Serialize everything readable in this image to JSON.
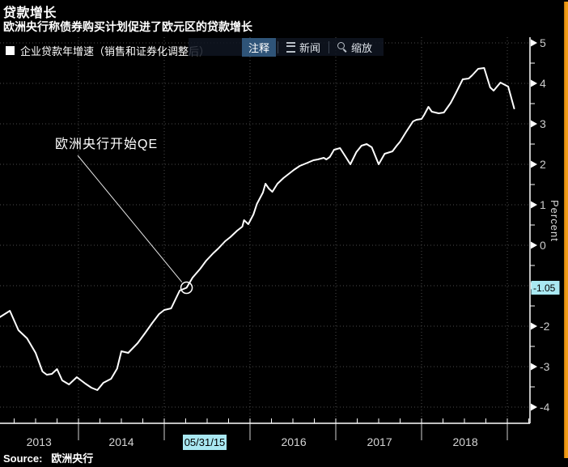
{
  "header": {
    "title": "贷款增长",
    "subtitle": "欧洲央行称债券购买计划促进了欧元区的贷款增长"
  },
  "legend": {
    "marker_color": "#ffffff",
    "label": "企业贷款年增速（销售和证券化调整后）"
  },
  "toolbar": {
    "items": [
      {
        "label": "注释",
        "selected": true,
        "icon": null
      },
      {
        "label": "新闻",
        "selected": false,
        "icon": "list-icon"
      },
      {
        "label": "缩放",
        "selected": false,
        "icon": "magnifier-icon"
      }
    ]
  },
  "annotation": {
    "text": "欧洲央行开始QE"
  },
  "selected_point": {
    "date_label": "05/31/15",
    "value_label": "-1.05",
    "x_year": 2015.26,
    "value": -1.05
  },
  "y_axis": {
    "title": "Percent",
    "major_ticks": [
      5,
      4,
      3,
      2,
      1,
      0,
      -1,
      -2,
      -3,
      -4
    ]
  },
  "x_axis": {
    "year_labels": [
      {
        "text": "2013",
        "center_year": 2013.54
      },
      {
        "text": "2014",
        "center_year": 2014.5
      },
      {
        "text": "2016",
        "center_year": 2016.51
      },
      {
        "text": "2017",
        "center_year": 2017.51
      },
      {
        "text": "2018",
        "center_year": 2018.51
      }
    ],
    "year_separators": [
      2014,
      2015,
      2016,
      2017,
      2018,
      2019
    ]
  },
  "source": {
    "prefix": "Source:",
    "name": "欧洲央行"
  },
  "colors": {
    "background": "#000000",
    "line": "#ffffff",
    "grid": "#4d4d4d",
    "axis": "#ffffff",
    "tick_label": "#cccccc",
    "highlight_cyan": "#a9e8f2",
    "selected_button_blue": "#2f5478",
    "orange_edge": "#f09c16"
  },
  "chart_data": {
    "type": "line",
    "title": "贷款增长",
    "subtitle": "欧洲央行称债券购买计划促进了欧元区的贷款增长",
    "series_name": "企业贷款年增速（销售和证券化调整后）",
    "xlabel": "",
    "ylabel": "Percent",
    "xlim": [
      2013.085,
      2019.264
    ],
    "ylim": [
      -4.4,
      5.14
    ],
    "grid": true,
    "annotation": {
      "text": "欧洲央行开始QE",
      "target_year": 2015.26,
      "target_value": -1.05
    },
    "series": [
      {
        "name": "企业贷款年增速（销售和证券化调整后）",
        "points": [
          [
            2013.08,
            -1.78
          ],
          [
            2013.2,
            -1.62
          ],
          [
            2013.3,
            -2.1
          ],
          [
            2013.4,
            -2.3
          ],
          [
            2013.5,
            -2.66
          ],
          [
            2013.58,
            -3.12
          ],
          [
            2013.63,
            -3.2
          ],
          [
            2013.69,
            -3.18
          ],
          [
            2013.75,
            -3.06
          ],
          [
            2013.81,
            -3.34
          ],
          [
            2013.89,
            -3.44
          ],
          [
            2013.98,
            -3.26
          ],
          [
            2014.08,
            -3.42
          ],
          [
            2014.15,
            -3.52
          ],
          [
            2014.22,
            -3.58
          ],
          [
            2014.29,
            -3.4
          ],
          [
            2014.38,
            -3.3
          ],
          [
            2014.45,
            -3.05
          ],
          [
            2014.5,
            -2.62
          ],
          [
            2014.58,
            -2.66
          ],
          [
            2014.69,
            -2.42
          ],
          [
            2014.78,
            -2.16
          ],
          [
            2014.86,
            -1.92
          ],
          [
            2014.94,
            -1.7
          ],
          [
            2015.0,
            -1.6
          ],
          [
            2015.08,
            -1.56
          ],
          [
            2015.18,
            -1.12
          ],
          [
            2015.26,
            -1.05
          ],
          [
            2015.33,
            -0.8
          ],
          [
            2015.42,
            -0.58
          ],
          [
            2015.49,
            -0.38
          ],
          [
            2015.57,
            -0.2
          ],
          [
            2015.63,
            -0.08
          ],
          [
            2015.71,
            0.1
          ],
          [
            2015.77,
            0.2
          ],
          [
            2015.85,
            0.36
          ],
          [
            2015.91,
            0.46
          ],
          [
            2015.93,
            0.62
          ],
          [
            2015.98,
            0.52
          ],
          [
            2016.04,
            0.76
          ],
          [
            2016.08,
            1.02
          ],
          [
            2016.15,
            1.3
          ],
          [
            2016.18,
            1.52
          ],
          [
            2016.22,
            1.4
          ],
          [
            2016.26,
            1.32
          ],
          [
            2016.32,
            1.52
          ],
          [
            2016.39,
            1.66
          ],
          [
            2016.45,
            1.76
          ],
          [
            2016.51,
            1.86
          ],
          [
            2016.58,
            1.96
          ],
          [
            2016.65,
            2.02
          ],
          [
            2016.74,
            2.1
          ],
          [
            2016.79,
            2.12
          ],
          [
            2016.86,
            2.16
          ],
          [
            2016.89,
            2.12
          ],
          [
            2016.93,
            2.18
          ],
          [
            2016.98,
            2.36
          ],
          [
            2017.05,
            2.4
          ],
          [
            2017.11,
            2.2
          ],
          [
            2017.17,
            2.0
          ],
          [
            2017.24,
            2.3
          ],
          [
            2017.3,
            2.46
          ],
          [
            2017.36,
            2.5
          ],
          [
            2017.42,
            2.42
          ],
          [
            2017.5,
            2.0
          ],
          [
            2017.57,
            2.26
          ],
          [
            2017.66,
            2.32
          ],
          [
            2017.71,
            2.46
          ],
          [
            2017.75,
            2.56
          ],
          [
            2017.82,
            2.8
          ],
          [
            2017.9,
            3.06
          ],
          [
            2017.94,
            3.1
          ],
          [
            2018.0,
            3.12
          ],
          [
            2018.03,
            3.22
          ],
          [
            2018.08,
            3.42
          ],
          [
            2018.12,
            3.3
          ],
          [
            2018.2,
            3.26
          ],
          [
            2018.26,
            3.28
          ],
          [
            2018.34,
            3.52
          ],
          [
            2018.4,
            3.76
          ],
          [
            2018.48,
            4.1
          ],
          [
            2018.55,
            4.12
          ],
          [
            2018.59,
            4.2
          ],
          [
            2018.66,
            4.36
          ],
          [
            2018.73,
            4.38
          ],
          [
            2018.8,
            3.9
          ],
          [
            2018.84,
            3.82
          ],
          [
            2018.92,
            4.02
          ],
          [
            2019.01,
            3.92
          ],
          [
            2019.08,
            3.38
          ]
        ]
      }
    ]
  }
}
